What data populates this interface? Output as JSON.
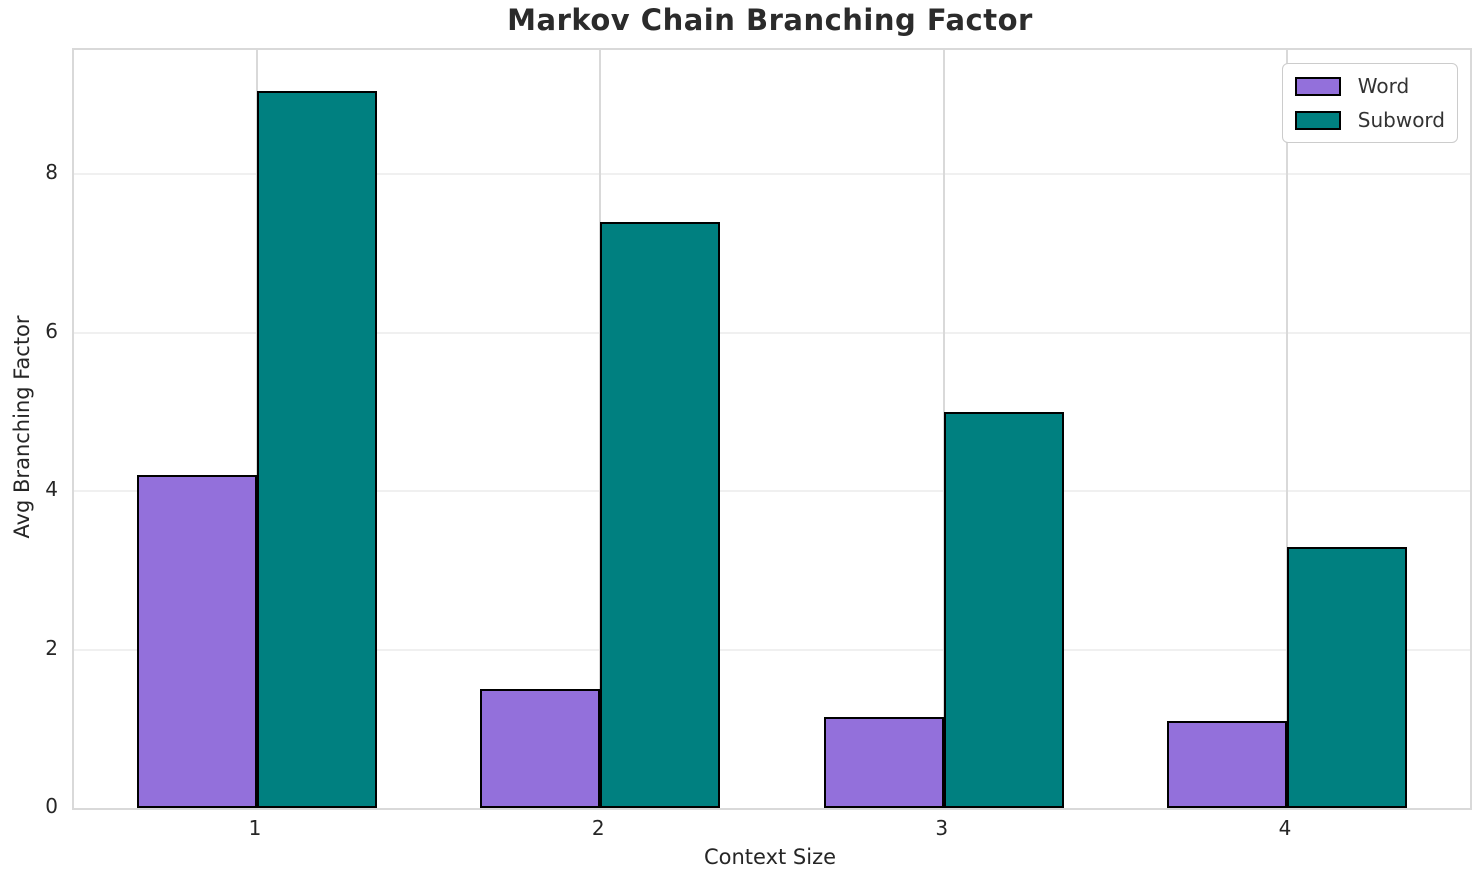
{
  "chart_data": {
    "type": "bar",
    "title": "Markov Chain Branching Factor",
    "xlabel": "Context Size",
    "ylabel": "Avg Branching Factor",
    "categories": [
      "1",
      "2",
      "3",
      "4"
    ],
    "series": [
      {
        "name": "Word",
        "color": "#9370DB",
        "values": [
          4.2,
          1.5,
          1.15,
          1.1
        ]
      },
      {
        "name": "Subword",
        "color": "#008080",
        "values": [
          9.05,
          7.4,
          5.0,
          3.3
        ]
      }
    ],
    "ylim": [
      0,
      9.57
    ],
    "yticks": [
      0,
      2,
      4,
      6,
      8
    ],
    "grid": true,
    "legend_position": "upper right",
    "bar_edge_color": "#000000"
  },
  "colors": {
    "background": "#ffffff",
    "grid_horizontal": "#f0f0f0",
    "grid_vertical": "#d9d9d9",
    "spine": "#d9d9d9",
    "text": "#262626",
    "title_text": "#2b2b2b"
  }
}
